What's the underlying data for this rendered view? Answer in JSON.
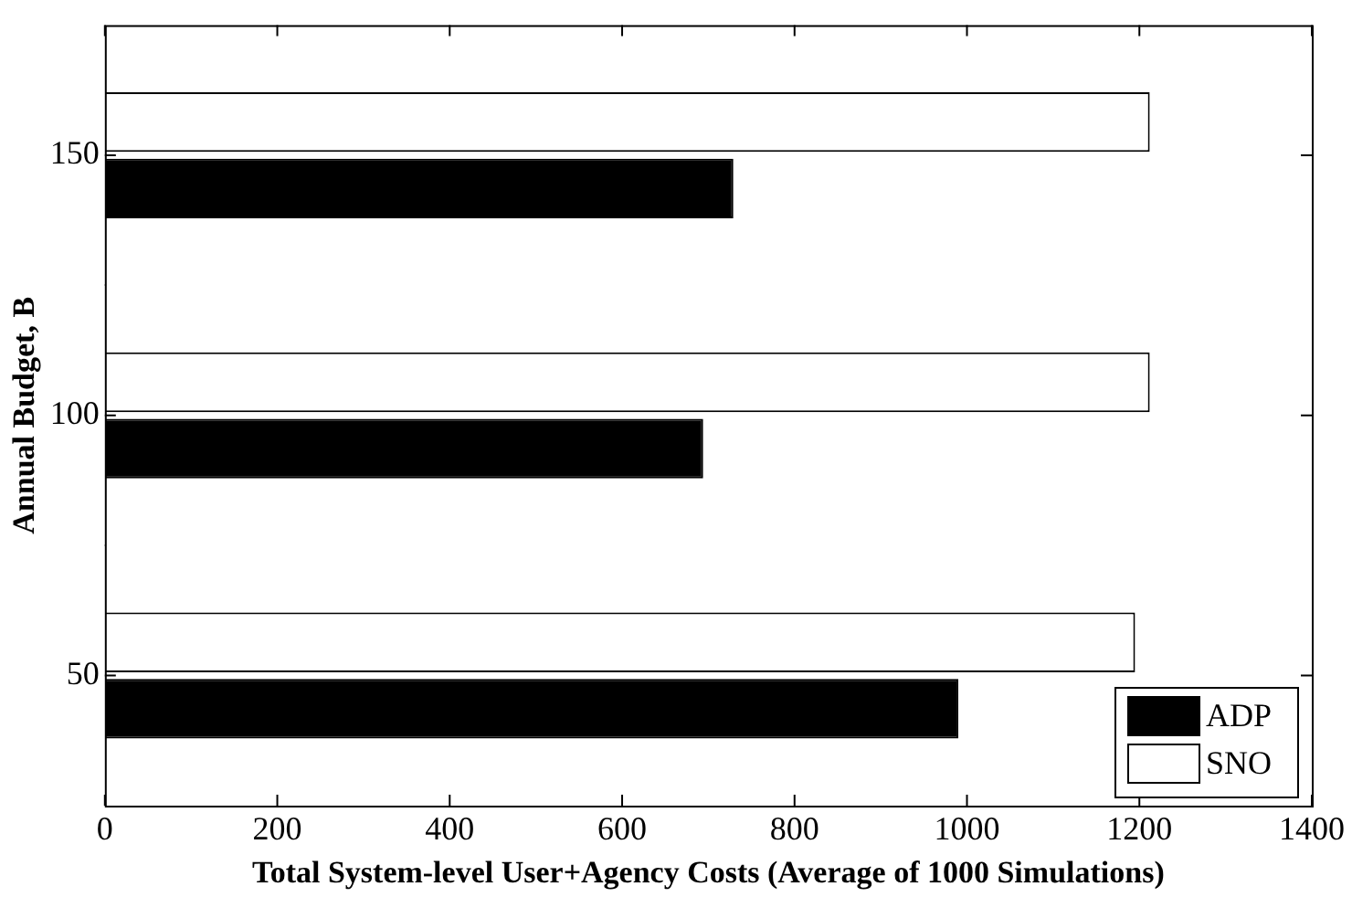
{
  "chart_data": {
    "type": "bar",
    "orientation": "horizontal",
    "xlabel": "Total System-level User+Agency Costs (Average of 1000 Simulations)",
    "ylabel": "Annual Budget, B",
    "categories": [
      "150",
      "100",
      "50"
    ],
    "series": [
      {
        "name": "ADP",
        "color": "#000000",
        "values": [
          729,
          694,
          990
        ]
      },
      {
        "name": "SNO",
        "color": "#ffffff",
        "values": [
          1212,
          1212,
          1195
        ]
      }
    ],
    "xlim": [
      0,
      1400
    ],
    "xticks": [
      0,
      200,
      400,
      600,
      800,
      1000,
      1200,
      1400
    ],
    "grid": false,
    "legend": "bottom right"
  }
}
